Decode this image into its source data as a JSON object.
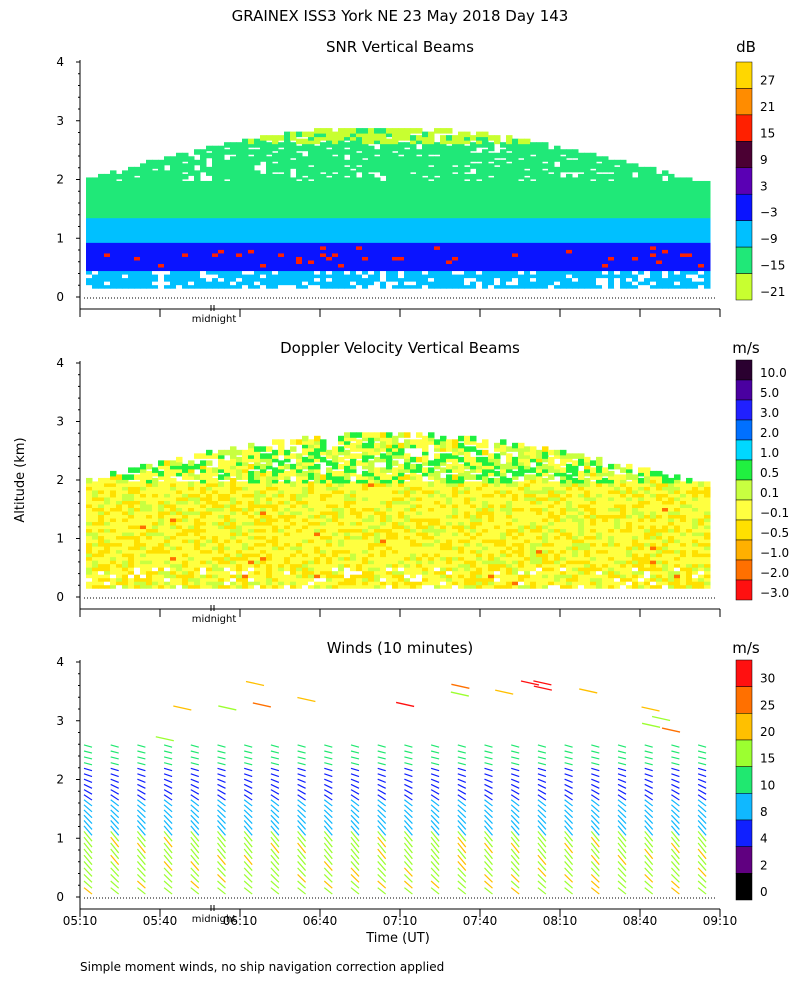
{
  "figure_title": "GRAINEX ISS3 York NE  23 May 2018 Day 143",
  "ylabel": "Altitude (km)",
  "xlabel": "Time (UT)",
  "footnote": "Simple moment winds, no ship navigation correction applied",
  "midnight_label": "midnight",
  "x_ticks": [
    "05:10",
    "05:40",
    "06:10",
    "06:40",
    "07:10",
    "07:40",
    "08:10",
    "08:40",
    "09:10"
  ],
  "y_ticks": [
    "0",
    "1",
    "2",
    "3",
    "4"
  ],
  "chart_data": [
    {
      "type": "heatmap",
      "title": "SNR Vertical Beams",
      "unit": "dB",
      "ylim": [
        0,
        4
      ],
      "xlim": [
        "05:10",
        "09:10"
      ],
      "colorbar": {
        "labels": [
          "27",
          "21",
          "15",
          "9",
          "3",
          "−3",
          "−9",
          "−15",
          "−21"
        ],
        "colors": [
          "#ffd700",
          "#ff8c00",
          "#ff2000",
          "#4b0033",
          "#5a00b4",
          "#0a14ff",
          "#00c0ff",
          "#20e878",
          "#c8ff30"
        ]
      },
      "layers": [
        {
          "altitude_km": [
            0.15,
            0.45
          ],
          "approx_db": -9
        },
        {
          "altitude_km": [
            0.45,
            0.9
          ],
          "approx_db": -3
        },
        {
          "altitude_km": [
            0.9,
            1.3
          ],
          "approx_db": -9
        },
        {
          "altitude_km": [
            1.3,
            1.9
          ],
          "approx_db": -15
        },
        {
          "altitude_km": [
            1.9,
            2.6
          ],
          "approx_db": -18
        },
        {
          "altitude_km": [
            2.6,
            3.0
          ],
          "approx_db": -21
        }
      ]
    },
    {
      "type": "heatmap",
      "title": "Doppler Velocity Vertical Beams",
      "unit": "m/s",
      "ylim": [
        0,
        4
      ],
      "xlim": [
        "05:10",
        "09:10"
      ],
      "colorbar": {
        "labels": [
          "10.0",
          "5.0",
          "3.0",
          "2.0",
          "1.0",
          "0.5",
          "0.1",
          "−0.1",
          "−0.5",
          "−1.0",
          "−2.0",
          "−3.0"
        ],
        "colors": [
          "#2a0030",
          "#4a00a0",
          "#2020ff",
          "#0070ff",
          "#00d8ff",
          "#20f040",
          "#c8ff40",
          "#ffff40",
          "#ffe000",
          "#ffb000",
          "#ff7000",
          "#ff1010"
        ]
      },
      "dominant_range_m_s": [
        -0.5,
        0.1
      ]
    },
    {
      "type": "scatter",
      "title": "Winds (10 minutes)",
      "unit": "m/s",
      "ylim": [
        0,
        4
      ],
      "xlim": [
        "05:10",
        "09:10"
      ],
      "colorbar": {
        "labels": [
          "30",
          "25",
          "20",
          "15",
          "10",
          "8",
          "4",
          "2",
          "0"
        ],
        "colors": [
          "#ff1010",
          "#ff7000",
          "#ffc000",
          "#9cff30",
          "#20e870",
          "#10b8ff",
          "#1020ff",
          "#600080",
          "#000000"
        ]
      },
      "profile_times": [
        "05:10",
        "05:20",
        "05:30",
        "05:40",
        "05:50",
        "06:00",
        "06:10",
        "06:20",
        "06:30",
        "06:40",
        "06:50",
        "07:00",
        "07:10",
        "07:20",
        "07:30",
        "07:40",
        "07:50",
        "08:00",
        "08:10",
        "08:20",
        "08:30",
        "08:40",
        "08:50",
        "09:00"
      ],
      "speed_by_altitude_m_s": [
        {
          "altitude_km": [
            0.0,
            1.0
          ],
          "speed": 15
        },
        {
          "altitude_km": [
            1.0,
            1.6
          ],
          "speed": 10
        },
        {
          "altitude_km": [
            1.6,
            2.2
          ],
          "speed": 6
        },
        {
          "altitude_km": [
            2.2,
            3.0
          ],
          "speed": 14
        },
        {
          "altitude_km": [
            3.0,
            4.0
          ],
          "speed": 22
        }
      ]
    }
  ]
}
